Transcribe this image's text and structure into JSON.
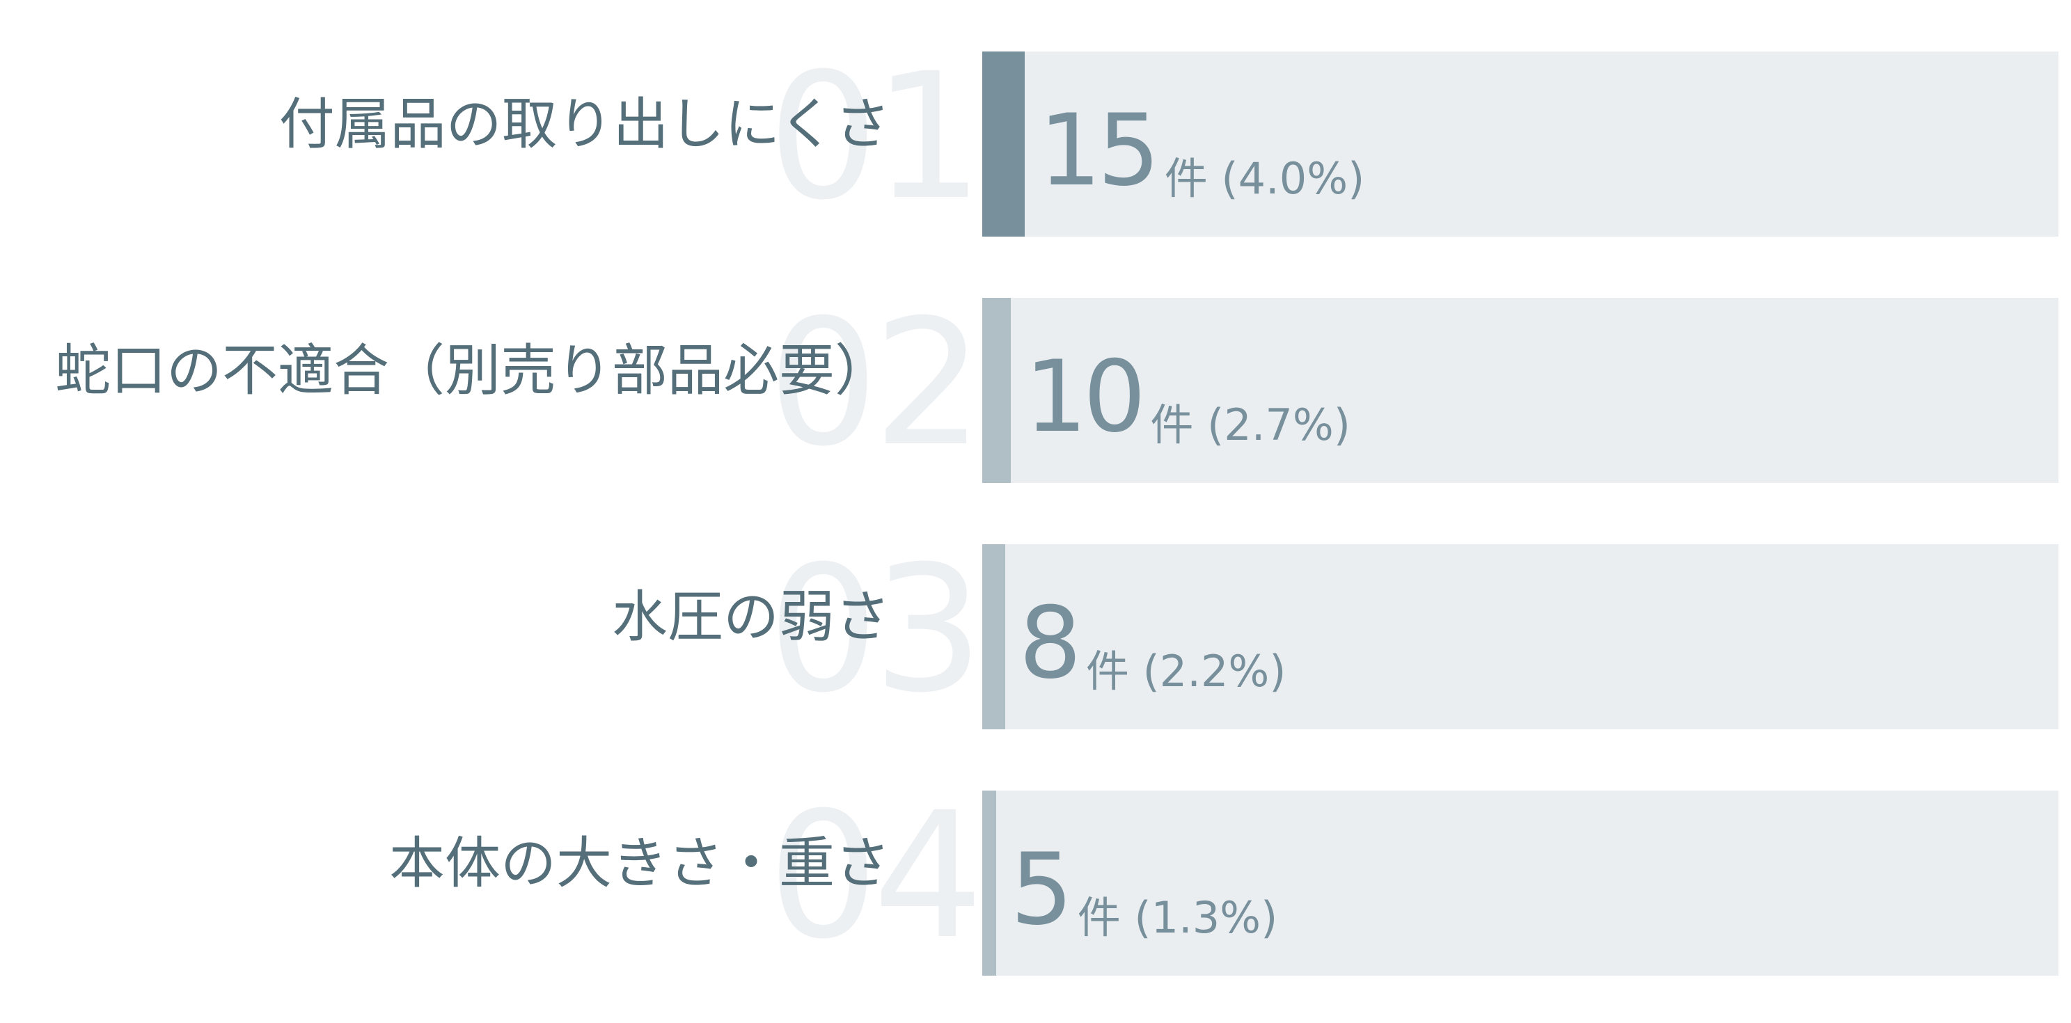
{
  "chart_data": {
    "type": "bar",
    "orientation": "horizontal",
    "max": 15,
    "colors": {
      "top": "#78909c",
      "other": "#b0bec5",
      "track": "#eaeef1",
      "label": "#546e7a",
      "rank": "#edf0f3"
    },
    "items": [
      {
        "rank": "01",
        "label": "付属品の取り出しにくさ",
        "value": 15,
        "value_text": "15",
        "unit_text": "件 (4.0%)"
      },
      {
        "rank": "02",
        "label": "蛇口の不適合（別売り部品必要）",
        "value": 10,
        "value_text": "10",
        "unit_text": "件 (2.7%)"
      },
      {
        "rank": "03",
        "label": "水圧の弱さ",
        "value": 8,
        "value_text": "8",
        "unit_text": "件 (2.2%)"
      },
      {
        "rank": "04",
        "label": "本体の大きさ・重さ",
        "value": 5,
        "value_text": "5",
        "unit_text": "件 (1.3%)"
      }
    ]
  }
}
